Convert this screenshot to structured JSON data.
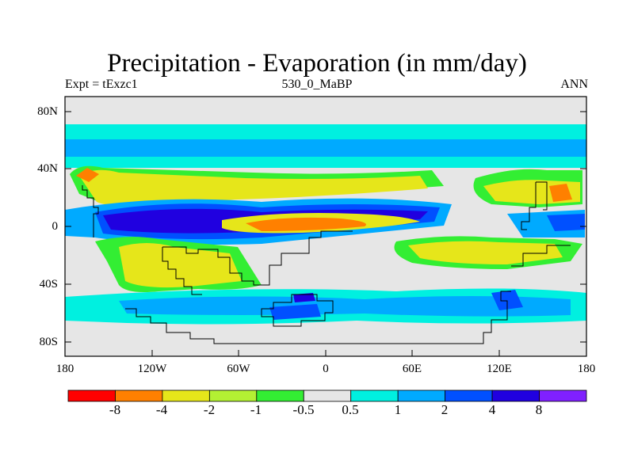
{
  "title": "Precipitation - Evaporation (in mm/day)",
  "subtitle_left": "Expt = tExzc1",
  "subtitle_center": "530_0_MaBP",
  "subtitle_right": "ANN",
  "y_labels": [
    "80N",
    "40N",
    "0",
    "40S",
    "80S"
  ],
  "x_labels": [
    "180",
    "120W",
    "60W",
    "0",
    "60E",
    "120E",
    "180"
  ],
  "colorbar": {
    "labels": [
      "-8",
      "-4",
      "-2",
      "-1",
      "-0.5",
      "0.5",
      "1",
      "2",
      "4",
      "8"
    ],
    "colors": [
      "#ff0000",
      "#ff8000",
      "#e6e61a",
      "#b3f033",
      "#33ee33",
      "#e6e6e6",
      "#00f0e0",
      "#00aaff",
      "#0050ff",
      "#2000e0",
      "#8020ff"
    ]
  },
  "ocean_color": "#e6e6e6",
  "coast_color": "#000000"
}
